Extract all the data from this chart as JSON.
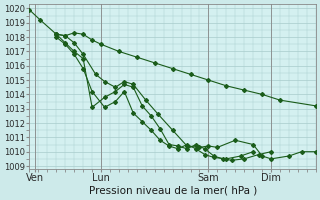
{
  "background_color": "#cdeaea",
  "grid_color": "#b8d8d8",
  "plot_bg": "#d4f0f0",
  "line_color": "#1a5c1a",
  "marker_color": "#1a5c1a",
  "ylabel_ticks": [
    1009,
    1010,
    1011,
    1012,
    1013,
    1014,
    1015,
    1016,
    1017,
    1018,
    1019,
    1020
  ],
  "ylim": [
    1008.8,
    1020.3
  ],
  "xlim": [
    0,
    16
  ],
  "xlabel": "Pression niveau de la mer( hPa )",
  "xtick_labels": [
    "Ven",
    "Lun",
    "Sam",
    "Dim"
  ],
  "xtick_positions": [
    0.3,
    4.0,
    10.0,
    13.5
  ],
  "vline_positions": [
    0.3,
    4.0,
    10.0,
    13.5
  ],
  "series": [
    [
      [
        0.0,
        1019.9
      ],
      [
        0.6,
        1019.2
      ],
      [
        1.5,
        1018.2
      ],
      [
        2.0,
        1018.1
      ],
      [
        2.5,
        1018.3
      ],
      [
        3.0,
        1018.2
      ],
      [
        3.5,
        1017.8
      ],
      [
        4.0,
        1017.5
      ],
      [
        5.0,
        1017.0
      ],
      [
        6.0,
        1016.6
      ],
      [
        7.0,
        1016.2
      ],
      [
        8.0,
        1015.8
      ],
      [
        9.0,
        1015.4
      ],
      [
        10.0,
        1015.0
      ],
      [
        11.0,
        1014.6
      ],
      [
        12.0,
        1014.3
      ],
      [
        13.0,
        1014.0
      ],
      [
        14.0,
        1013.6
      ],
      [
        16.0,
        1013.2
      ]
    ],
    [
      [
        1.5,
        1018.2
      ],
      [
        2.0,
        1018.1
      ],
      [
        2.5,
        1017.6
      ],
      [
        3.0,
        1016.8
      ],
      [
        3.7,
        1015.4
      ],
      [
        4.2,
        1014.9
      ],
      [
        4.8,
        1014.5
      ],
      [
        5.3,
        1014.9
      ],
      [
        5.8,
        1014.7
      ],
      [
        6.5,
        1013.6
      ],
      [
        7.2,
        1012.6
      ],
      [
        8.0,
        1011.5
      ],
      [
        8.8,
        1010.4
      ],
      [
        9.5,
        1010.3
      ],
      [
        10.0,
        1010.4
      ],
      [
        10.5,
        1010.3
      ],
      [
        11.5,
        1010.8
      ],
      [
        12.5,
        1010.5
      ],
      [
        13.0,
        1009.7
      ],
      [
        13.5,
        1009.5
      ],
      [
        14.5,
        1009.7
      ],
      [
        15.2,
        1010.0
      ],
      [
        16.0,
        1010.0
      ]
    ],
    [
      [
        1.5,
        1018.2
      ],
      [
        2.0,
        1017.6
      ],
      [
        2.5,
        1017.0
      ],
      [
        3.0,
        1016.5
      ],
      [
        3.5,
        1013.1
      ],
      [
        4.2,
        1013.8
      ],
      [
        4.8,
        1014.2
      ],
      [
        5.3,
        1014.7
      ],
      [
        5.8,
        1014.5
      ],
      [
        6.3,
        1013.2
      ],
      [
        6.8,
        1012.5
      ],
      [
        7.3,
        1011.6
      ],
      [
        7.8,
        1010.5
      ],
      [
        8.3,
        1010.4
      ],
      [
        8.8,
        1010.2
      ],
      [
        9.3,
        1010.5
      ],
      [
        9.8,
        1010.2
      ],
      [
        10.3,
        1009.7
      ],
      [
        10.8,
        1009.5
      ],
      [
        11.3,
        1009.4
      ],
      [
        12.0,
        1009.5
      ],
      [
        12.8,
        1009.8
      ],
      [
        13.5,
        1010.0
      ]
    ],
    [
      [
        1.5,
        1018.0
      ],
      [
        2.0,
        1017.5
      ],
      [
        2.5,
        1016.8
      ],
      [
        3.0,
        1015.8
      ],
      [
        3.5,
        1014.2
      ],
      [
        4.2,
        1013.1
      ],
      [
        4.8,
        1013.5
      ],
      [
        5.3,
        1014.2
      ],
      [
        5.8,
        1012.7
      ],
      [
        6.3,
        1012.1
      ],
      [
        6.8,
        1011.5
      ],
      [
        7.3,
        1010.8
      ],
      [
        7.8,
        1010.4
      ],
      [
        8.3,
        1010.2
      ],
      [
        8.8,
        1010.5
      ],
      [
        9.3,
        1010.2
      ],
      [
        9.8,
        1009.8
      ],
      [
        10.3,
        1009.6
      ],
      [
        11.0,
        1009.5
      ],
      [
        11.8,
        1009.7
      ],
      [
        12.5,
        1010.0
      ]
    ]
  ]
}
